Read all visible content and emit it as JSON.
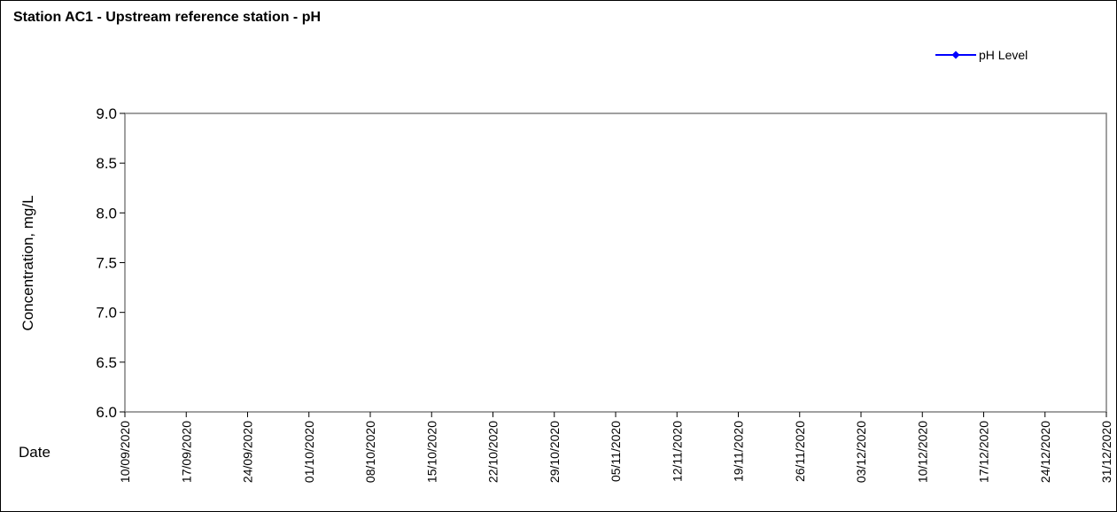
{
  "chart_data": {
    "type": "line",
    "title": "Station AC1 - Upstream reference station - pH",
    "xlabel": "Date",
    "ylabel": "Concentration, mg/L",
    "ylim": [
      6.0,
      9.0
    ],
    "yticks": [
      "6.0",
      "6.5",
      "7.0",
      "7.5",
      "8.0",
      "8.5",
      "9.0"
    ],
    "xlim": [
      "10/09/2020",
      "31/12/2020"
    ],
    "xticks": [
      "10/09/2020",
      "17/09/2020",
      "24/09/2020",
      "01/10/2020",
      "08/10/2020",
      "15/10/2020",
      "22/10/2020",
      "29/10/2020",
      "05/11/2020",
      "12/11/2020",
      "19/11/2020",
      "26/11/2020",
      "03/12/2020",
      "10/12/2020",
      "17/12/2020",
      "24/12/2020",
      "31/12/2020"
    ],
    "series": [
      {
        "name": "pH Level",
        "color": "#0000ff",
        "marker": "diamond",
        "x": [],
        "values": []
      }
    ],
    "legend": {
      "placement": "top-right"
    },
    "grid": false
  }
}
